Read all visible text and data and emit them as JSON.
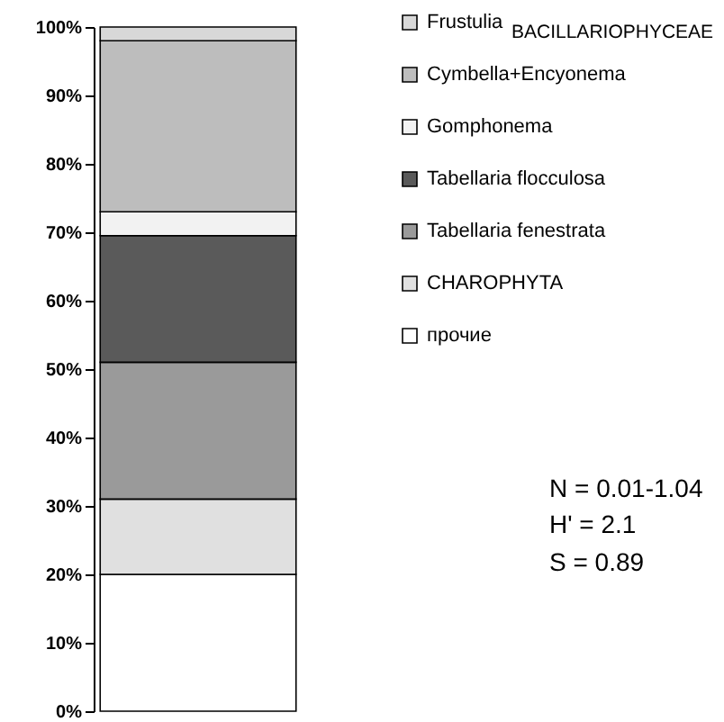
{
  "chart_data": {
    "type": "bar",
    "stacked": true,
    "categories": [
      null
    ],
    "series": [
      {
        "name": "прочие",
        "color": "#ffffff",
        "values": [
          20
        ]
      },
      {
        "name": "CHAROPHYTA",
        "color": "#e0e0e0",
        "values": [
          11
        ]
      },
      {
        "name": "Tabellaria fenestrata",
        "color": "#9a9a9a",
        "values": [
          20
        ]
      },
      {
        "name": "Tabellaria flocculosa",
        "color": "#5a5a5a",
        "values": [
          18.5
        ]
      },
      {
        "name": "Gomphonema",
        "color": "#f2f2f2",
        "values": [
          3.5
        ]
      },
      {
        "name": "Cymbella+Encyonema",
        "color": "#bdbdbd",
        "values": [
          25
        ]
      },
      {
        "name": "Frustulia",
        "color": "#d8d8d8",
        "values": [
          2
        ]
      }
    ],
    "ylim": [
      0,
      100
    ],
    "yticks": [
      {
        "value": 0,
        "label": "0%"
      },
      {
        "value": 10,
        "label": "10%"
      },
      {
        "value": 20,
        "label": "20%"
      },
      {
        "value": 30,
        "label": "30%"
      },
      {
        "value": 40,
        "label": "40%"
      },
      {
        "value": 50,
        "label": "50%"
      },
      {
        "value": 60,
        "label": "60%"
      },
      {
        "value": 70,
        "label": "70%"
      },
      {
        "value": 80,
        "label": "80%"
      },
      {
        "value": 90,
        "label": "90%"
      },
      {
        "value": 100,
        "label": "100%"
      }
    ],
    "grid": false,
    "legend": "top right",
    "tick_labels": "y",
    "annotations": [
      "BACILLARIOPHYCEAE",
      "N = 0.01-1.04",
      "H' = 2.1",
      "S = 0.89"
    ]
  }
}
